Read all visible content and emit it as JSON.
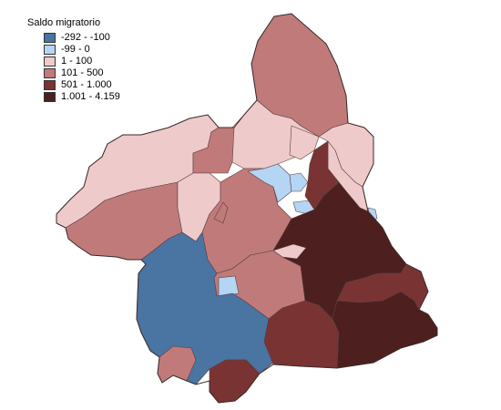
{
  "legend": {
    "title": "Saldo migratorio",
    "classes": [
      {
        "label": "-292 - -100",
        "color": "#4a74a2"
      },
      {
        "label": "-99 - 0",
        "color": "#b5d5f5"
      },
      {
        "label": "1 - 100",
        "color": "#efcaca"
      },
      {
        "label": "101 - 500",
        "color": "#c07a7a"
      },
      {
        "label": "501 - 1.000",
        "color": "#7a3333"
      },
      {
        "label": "1.001 - 4.159",
        "color": "#4e1f1f"
      }
    ]
  },
  "regions": [
    {
      "class": 3,
      "name": "north"
    },
    {
      "class": 2,
      "name": "north-central-a"
    },
    {
      "class": 2,
      "name": "north-central-b"
    },
    {
      "class": 2,
      "name": "northeast-a"
    },
    {
      "class": 2,
      "name": "northeast-b"
    },
    {
      "class": 2,
      "name": "west-upper"
    },
    {
      "class": 3,
      "name": "west-lower"
    },
    {
      "class": 3,
      "name": "center-small"
    },
    {
      "class": 2,
      "name": "center-west"
    },
    {
      "class": 3,
      "name": "center"
    },
    {
      "class": 3,
      "name": "center-south"
    },
    {
      "class": 1,
      "name": "center-blue-a"
    },
    {
      "class": 1,
      "name": "center-blue-b"
    },
    {
      "class": 1,
      "name": "center-blue-c"
    },
    {
      "class": 1,
      "name": "east-blue"
    },
    {
      "class": 1,
      "name": "lorca-blue"
    },
    {
      "class": 0,
      "name": "southwest"
    },
    {
      "class": 3,
      "name": "southwest-small"
    },
    {
      "class": 4,
      "name": "south-coast"
    },
    {
      "class": 4,
      "name": "south-center"
    },
    {
      "class": 5,
      "name": "east-large"
    },
    {
      "class": 5,
      "name": "southeast"
    },
    {
      "class": 4,
      "name": "east-coast"
    },
    {
      "class": 4,
      "name": "mid-north-red"
    },
    {
      "class": 3,
      "name": "small-center-pink"
    },
    {
      "class": 2,
      "name": "small-center-light"
    }
  ]
}
